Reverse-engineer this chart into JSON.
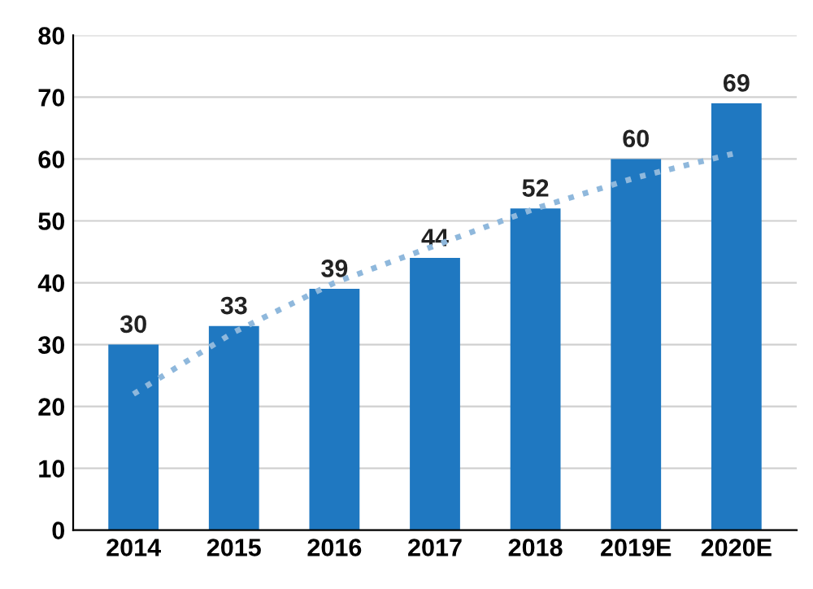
{
  "chart_data": {
    "type": "bar",
    "categories": [
      "2014",
      "2015",
      "2016",
      "2017",
      "2018",
      "2019E",
      "2020E"
    ],
    "series": [
      {
        "color": "#1f78c1",
        "values": [
          30,
          33,
          39,
          44,
          52,
          60,
          69
        ],
        "value_labels": [
          "30",
          "33",
          "39",
          "44",
          "52",
          "60",
          "69"
        ]
      },
      {
        "type": "line",
        "color": "#8fb8dc",
        "line_style": "dotted",
        "marker": "none",
        "values": [
          22,
          32,
          40,
          46,
          52,
          57,
          61
        ]
      }
    ],
    "ylim": [
      0,
      80
    ],
    "yticks": [
      0,
      10,
      20,
      30,
      40,
      50,
      60,
      70,
      80
    ],
    "grid": "y",
    "legend": false
  }
}
